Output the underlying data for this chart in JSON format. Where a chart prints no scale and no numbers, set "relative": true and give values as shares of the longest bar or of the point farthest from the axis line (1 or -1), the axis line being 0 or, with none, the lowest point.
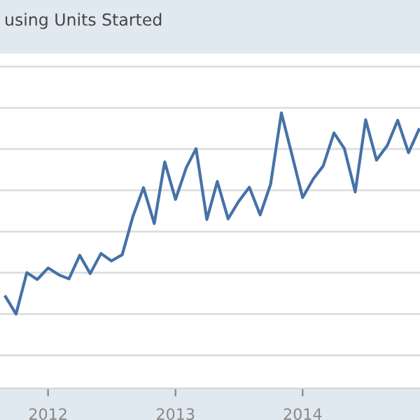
{
  "chart_data": {
    "type": "line",
    "title": "using Units Started",
    "relative": true,
    "tick_labels": "x",
    "grid": "y",
    "marker": "none",
    "line_style": "solid",
    "x": [
      "2011-09",
      "2011-10",
      "2011-11",
      "2011-12",
      "2012-01",
      "2012-02",
      "2012-03",
      "2012-04",
      "2012-05",
      "2012-06",
      "2012-07",
      "2012-08",
      "2012-09",
      "2012-10",
      "2012-11",
      "2012-12",
      "2013-01",
      "2013-02",
      "2013-03",
      "2013-04",
      "2013-05",
      "2013-06",
      "2013-07",
      "2013-08",
      "2013-09",
      "2013-10",
      "2013-11",
      "2013-12",
      "2014-01",
      "2014-02",
      "2014-03",
      "2014-04",
      "2014-05",
      "2014-06",
      "2014-07",
      "2014-08",
      "2014-09",
      "2014-10",
      "2014-11",
      "2014-12"
    ],
    "xlim": [
      "2011-08-16",
      "2014-12-04"
    ],
    "xticks": [
      {
        "value": "2012-01-01",
        "label": "2012"
      },
      {
        "value": "2013-01-01",
        "label": "2013"
      },
      {
        "value": "2014-01-01",
        "label": "2014"
      }
    ],
    "series": [
      {
        "color": "#4572a7",
        "values": [
          0.086,
          0,
          0.206,
          0.172,
          0.229,
          0.195,
          0.175,
          0.292,
          0.201,
          0.301,
          0.264,
          0.295,
          0.487,
          0.628,
          0.45,
          0.756,
          0.57,
          0.728,
          0.822,
          0.47,
          0.659,
          0.473,
          0.559,
          0.63,
          0.493,
          0.645,
          1,
          0.794,
          0.579,
          0.673,
          0.736,
          0.9,
          0.822,
          0.607,
          0.966,
          0.765,
          0.837,
          0.963,
          0.802,
          0.917
        ]
      }
    ]
  }
}
